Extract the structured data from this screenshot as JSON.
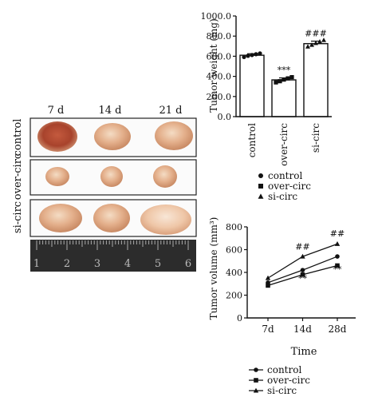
{
  "photo_panel": {
    "day_labels": [
      "7 d",
      "14 d",
      "21 d"
    ],
    "row_labels": [
      "control",
      "over-circ",
      "si-circ"
    ],
    "ruler_labels": [
      "1",
      "2",
      "3",
      "4",
      "5",
      "6"
    ]
  },
  "chart_data": [
    {
      "type": "bar",
      "title": "",
      "xlabel": "",
      "ylabel": "Tumor weight (mg)",
      "ylim": [
        0,
        1000
      ],
      "yticks": [
        "0.0",
        "200.0",
        "400.0",
        "600.0",
        "800.0",
        "1000.0"
      ],
      "ytick_values": [
        0,
        200,
        400,
        600,
        800,
        1000
      ],
      "categories": [
        "control",
        "over-circ",
        "si-circ"
      ],
      "values": [
        610,
        365,
        725
      ],
      "errors": [
        15,
        20,
        25
      ],
      "points": [
        [
          592,
          604,
          612,
          620,
          628
        ],
        [
          340,
          352,
          368,
          380,
          392
        ],
        [
          695,
          712,
          730,
          745,
          760
        ]
      ],
      "annotations": [
        "",
        "***",
        "###"
      ],
      "legend": [
        "control",
        "over-circ",
        "si-circ"
      ],
      "legend_markers": [
        "circle",
        "square",
        "triangle"
      ]
    },
    {
      "type": "line",
      "title": "",
      "xlabel": "Time",
      "ylabel": "Tumor volume (mm³)",
      "ylim": [
        0,
        800
      ],
      "yticks": [
        "0",
        "200",
        "400",
        "600",
        "800"
      ],
      "ytick_values": [
        0,
        200,
        400,
        600,
        800
      ],
      "categories": [
        "7d",
        "14d",
        "28d"
      ],
      "series": [
        {
          "name": "control",
          "marker": "circle",
          "values": [
            310,
            420,
            540
          ]
        },
        {
          "name": "over-circ",
          "marker": "square",
          "values": [
            285,
            380,
            460
          ]
        },
        {
          "name": "si-circ",
          "marker": "triangle",
          "values": [
            350,
            540,
            650
          ]
        }
      ],
      "annotations": [
        {
          "text": "##",
          "category": "14d",
          "value": 600
        },
        {
          "text": "##",
          "category": "28d",
          "value": 715
        },
        {
          "text": "**",
          "category": "14d",
          "value": 320
        },
        {
          "text": "**",
          "category": "28d",
          "value": 400
        }
      ]
    }
  ]
}
